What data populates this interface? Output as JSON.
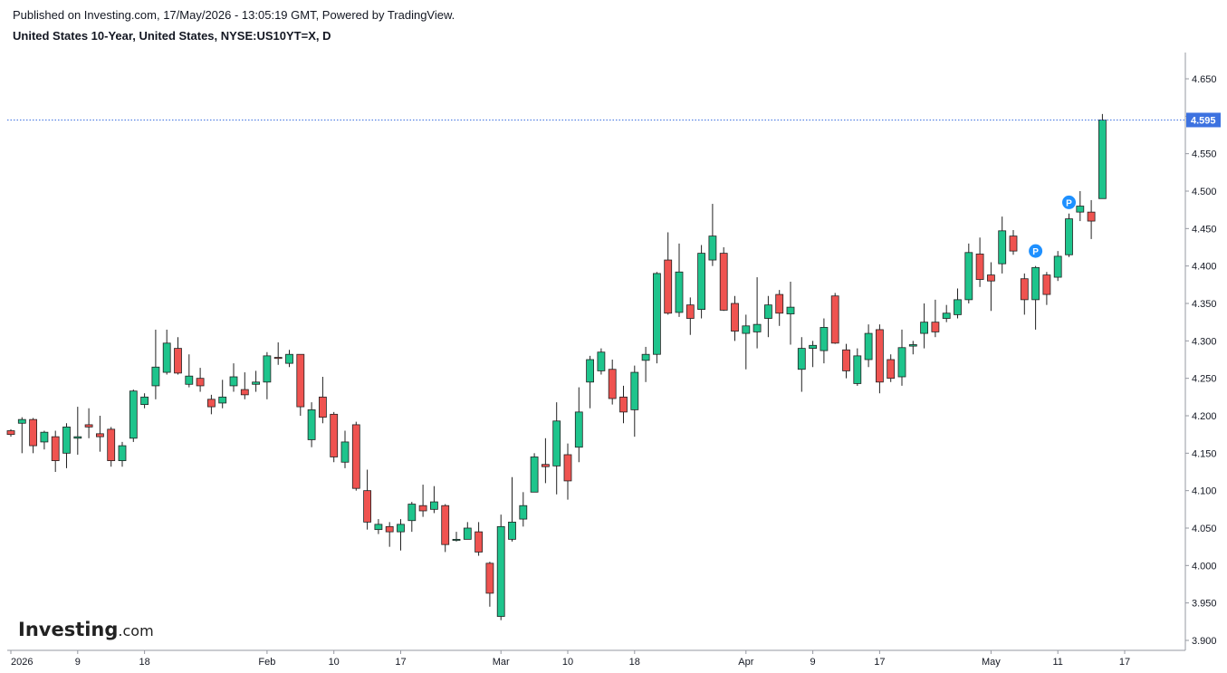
{
  "header": {
    "published": "Published on Investing.com, 17/May/2026 - 13:05:19 GMT, Powered by TradingView.",
    "symbol": "United States 10-Year, United States, NYSE:US10YT=X, D"
  },
  "logo": {
    "main": "Investing",
    "suffix": ".com"
  },
  "colors": {
    "up": "#1ec48c",
    "down": "#ef5350",
    "last_price": "#3d72e0",
    "pivot": "#1e90ff"
  },
  "chart_data": {
    "type": "candlestick",
    "ylim": [
      3.895,
      4.68
    ],
    "y_ticks": [
      "3.900",
      "3.950",
      "4.000",
      "4.050",
      "4.100",
      "4.150",
      "4.200",
      "4.250",
      "4.300",
      "4.350",
      "4.400",
      "4.450",
      "4.500",
      "4.550",
      "4.600",
      "4.650"
    ],
    "x_ticks": [
      {
        "label": "2026",
        "index": 0
      },
      {
        "label": "9",
        "index": 6
      },
      {
        "label": "18",
        "index": 12
      },
      {
        "label": "Feb",
        "index": 23
      },
      {
        "label": "10",
        "index": 29
      },
      {
        "label": "17",
        "index": 35
      },
      {
        "label": "Mar",
        "index": 44
      },
      {
        "label": "10",
        "index": 50
      },
      {
        "label": "18",
        "index": 56
      },
      {
        "label": "Apr",
        "index": 66
      },
      {
        "label": "9",
        "index": 72
      },
      {
        "label": "17",
        "index": 78
      },
      {
        "label": "May",
        "index": 88
      },
      {
        "label": "11",
        "index": 94
      },
      {
        "label": "17",
        "index": 100
      }
    ],
    "last_price": "4.595",
    "pivot_markers": [
      {
        "index": 92,
        "y": 4.42,
        "label": "P"
      },
      {
        "index": 95,
        "y": 4.485,
        "label": "P"
      }
    ],
    "candles": [
      {
        "o": 4.18,
        "h": 4.182,
        "l": 4.172,
        "c": 4.175
      },
      {
        "o": 4.19,
        "h": 4.198,
        "l": 4.15,
        "c": 4.195
      },
      {
        "o": 4.195,
        "h": 4.197,
        "l": 4.15,
        "c": 4.16
      },
      {
        "o": 4.165,
        "h": 4.18,
        "l": 4.155,
        "c": 4.178
      },
      {
        "o": 4.172,
        "h": 4.18,
        "l": 4.125,
        "c": 4.14
      },
      {
        "o": 4.15,
        "h": 4.19,
        "l": 4.13,
        "c": 4.185
      },
      {
        "o": 4.17,
        "h": 4.212,
        "l": 4.148,
        "c": 4.172
      },
      {
        "o": 4.188,
        "h": 4.21,
        "l": 4.17,
        "c": 4.185
      },
      {
        "o": 4.176,
        "h": 4.2,
        "l": 4.152,
        "c": 4.172
      },
      {
        "o": 4.182,
        "h": 4.185,
        "l": 4.132,
        "c": 4.14
      },
      {
        "o": 4.14,
        "h": 4.165,
        "l": 4.132,
        "c": 4.16
      },
      {
        "o": 4.17,
        "h": 4.235,
        "l": 4.165,
        "c": 4.233
      },
      {
        "o": 4.215,
        "h": 4.23,
        "l": 4.21,
        "c": 4.225
      },
      {
        "o": 4.24,
        "h": 4.315,
        "l": 4.222,
        "c": 4.265
      },
      {
        "o": 4.258,
        "h": 4.315,
        "l": 4.255,
        "c": 4.297
      },
      {
        "o": 4.29,
        "h": 4.305,
        "l": 4.255,
        "c": 4.257
      },
      {
        "o": 4.242,
        "h": 4.282,
        "l": 4.238,
        "c": 4.253
      },
      {
        "o": 4.25,
        "h": 4.264,
        "l": 4.232,
        "c": 4.24
      },
      {
        "o": 4.222,
        "h": 4.228,
        "l": 4.202,
        "c": 4.212
      },
      {
        "o": 4.217,
        "h": 4.248,
        "l": 4.21,
        "c": 4.225
      },
      {
        "o": 4.24,
        "h": 4.27,
        "l": 4.232,
        "c": 4.252
      },
      {
        "o": 4.235,
        "h": 4.258,
        "l": 4.222,
        "c": 4.228
      },
      {
        "o": 4.242,
        "h": 4.26,
        "l": 4.232,
        "c": 4.245
      },
      {
        "o": 4.245,
        "h": 4.285,
        "l": 4.222,
        "c": 4.28
      },
      {
        "o": 4.278,
        "h": 4.298,
        "l": 4.268,
        "c": 4.277
      },
      {
        "o": 4.27,
        "h": 4.288,
        "l": 4.265,
        "c": 4.282
      },
      {
        "o": 4.282,
        "h": 4.282,
        "l": 4.2,
        "c": 4.212
      },
      {
        "o": 4.168,
        "h": 4.218,
        "l": 4.158,
        "c": 4.208
      },
      {
        "o": 4.225,
        "h": 4.252,
        "l": 4.19,
        "c": 4.198
      },
      {
        "o": 4.202,
        "h": 4.205,
        "l": 4.138,
        "c": 4.145
      },
      {
        "o": 4.138,
        "h": 4.18,
        "l": 4.13,
        "c": 4.165
      },
      {
        "o": 4.188,
        "h": 4.192,
        "l": 4.1,
        "c": 4.103
      },
      {
        "o": 4.1,
        "h": 4.128,
        "l": 4.048,
        "c": 4.058
      },
      {
        "o": 4.048,
        "h": 4.062,
        "l": 4.042,
        "c": 4.055
      },
      {
        "o": 4.052,
        "h": 4.058,
        "l": 4.025,
        "c": 4.045
      },
      {
        "o": 4.045,
        "h": 4.062,
        "l": 4.02,
        "c": 4.055
      },
      {
        "o": 4.06,
        "h": 4.085,
        "l": 4.045,
        "c": 4.082
      },
      {
        "o": 4.08,
        "h": 4.108,
        "l": 4.065,
        "c": 4.073
      },
      {
        "o": 4.075,
        "h": 4.106,
        "l": 4.07,
        "c": 4.085
      },
      {
        "o": 4.08,
        "h": 4.082,
        "l": 4.018,
        "c": 4.028
      },
      {
        "o": 4.035,
        "h": 4.045,
        "l": 4.032,
        "c": 4.035
      },
      {
        "o": 4.035,
        "h": 4.058,
        "l": 4.035,
        "c": 4.05
      },
      {
        "o": 4.045,
        "h": 4.058,
        "l": 4.013,
        "c": 4.018
      },
      {
        "o": 4.003,
        "h": 4.005,
        "l": 3.945,
        "c": 3.963
      },
      {
        "o": 3.932,
        "h": 4.068,
        "l": 3.927,
        "c": 4.052
      },
      {
        "o": 4.035,
        "h": 4.118,
        "l": 4.032,
        "c": 4.058
      },
      {
        "o": 4.062,
        "h": 4.098,
        "l": 4.052,
        "c": 4.08
      },
      {
        "o": 4.098,
        "h": 4.15,
        "l": 4.098,
        "c": 4.145
      },
      {
        "o": 4.135,
        "h": 4.17,
        "l": 4.11,
        "c": 4.132
      },
      {
        "o": 4.133,
        "h": 4.218,
        "l": 4.095,
        "c": 4.193
      },
      {
        "o": 4.148,
        "h": 4.163,
        "l": 4.088,
        "c": 4.113
      },
      {
        "o": 4.158,
        "h": 4.238,
        "l": 4.138,
        "c": 4.205
      },
      {
        "o": 4.245,
        "h": 4.28,
        "l": 4.21,
        "c": 4.275
      },
      {
        "o": 4.26,
        "h": 4.29,
        "l": 4.255,
        "c": 4.285
      },
      {
        "o": 4.262,
        "h": 4.275,
        "l": 4.215,
        "c": 4.223
      },
      {
        "o": 4.225,
        "h": 4.24,
        "l": 4.19,
        "c": 4.205
      },
      {
        "o": 4.208,
        "h": 4.267,
        "l": 4.172,
        "c": 4.258
      },
      {
        "o": 4.274,
        "h": 4.292,
        "l": 4.245,
        "c": 4.282
      },
      {
        "o": 4.282,
        "h": 4.392,
        "l": 4.27,
        "c": 4.39
      },
      {
        "o": 4.408,
        "h": 4.445,
        "l": 4.335,
        "c": 4.337
      },
      {
        "o": 4.338,
        "h": 4.43,
        "l": 4.332,
        "c": 4.392
      },
      {
        "o": 4.348,
        "h": 4.358,
        "l": 4.308,
        "c": 4.33
      },
      {
        "o": 4.342,
        "h": 4.428,
        "l": 4.33,
        "c": 4.417
      },
      {
        "o": 4.408,
        "h": 4.483,
        "l": 4.4,
        "c": 4.44
      },
      {
        "o": 4.417,
        "h": 4.425,
        "l": 4.34,
        "c": 4.341
      },
      {
        "o": 4.35,
        "h": 4.36,
        "l": 4.3,
        "c": 4.313
      },
      {
        "o": 4.31,
        "h": 4.335,
        "l": 4.262,
        "c": 4.32
      },
      {
        "o": 4.312,
        "h": 4.385,
        "l": 4.29,
        "c": 4.322
      },
      {
        "o": 4.33,
        "h": 4.36,
        "l": 4.305,
        "c": 4.348
      },
      {
        "o": 4.362,
        "h": 4.368,
        "l": 4.32,
        "c": 4.337
      },
      {
        "o": 4.336,
        "h": 4.379,
        "l": 4.295,
        "c": 4.345
      },
      {
        "o": 4.262,
        "h": 4.305,
        "l": 4.232,
        "c": 4.29
      },
      {
        "o": 4.29,
        "h": 4.3,
        "l": 4.265,
        "c": 4.294
      },
      {
        "o": 4.287,
        "h": 4.33,
        "l": 4.27,
        "c": 4.318
      },
      {
        "o": 4.36,
        "h": 4.364,
        "l": 4.296,
        "c": 4.297
      },
      {
        "o": 4.288,
        "h": 4.296,
        "l": 4.25,
        "c": 4.26
      },
      {
        "o": 4.243,
        "h": 4.29,
        "l": 4.24,
        "c": 4.28
      },
      {
        "o": 4.275,
        "h": 4.322,
        "l": 4.265,
        "c": 4.31
      },
      {
        "o": 4.315,
        "h": 4.322,
        "l": 4.23,
        "c": 4.245
      },
      {
        "o": 4.275,
        "h": 4.282,
        "l": 4.245,
        "c": 4.25
      },
      {
        "o": 4.252,
        "h": 4.315,
        "l": 4.24,
        "c": 4.291
      },
      {
        "o": 4.293,
        "h": 4.3,
        "l": 4.282,
        "c": 4.295
      },
      {
        "o": 4.31,
        "h": 4.35,
        "l": 4.29,
        "c": 4.325
      },
      {
        "o": 4.325,
        "h": 4.355,
        "l": 4.305,
        "c": 4.312
      },
      {
        "o": 4.33,
        "h": 4.348,
        "l": 4.325,
        "c": 4.337
      },
      {
        "o": 4.335,
        "h": 4.37,
        "l": 4.33,
        "c": 4.355
      },
      {
        "o": 4.355,
        "h": 4.43,
        "l": 4.35,
        "c": 4.418
      },
      {
        "o": 4.416,
        "h": 4.438,
        "l": 4.372,
        "c": 4.382
      },
      {
        "o": 4.388,
        "h": 4.405,
        "l": 4.34,
        "c": 4.38
      },
      {
        "o": 4.403,
        "h": 4.466,
        "l": 4.39,
        "c": 4.447
      },
      {
        "o": 4.44,
        "h": 4.448,
        "l": 4.415,
        "c": 4.42
      },
      {
        "o": 4.383,
        "h": 4.39,
        "l": 4.335,
        "c": 4.355
      },
      {
        "o": 4.355,
        "h": 4.4,
        "l": 4.315,
        "c": 4.398
      },
      {
        "o": 4.388,
        "h": 4.392,
        "l": 4.348,
        "c": 4.362
      },
      {
        "o": 4.385,
        "h": 4.42,
        "l": 4.38,
        "c": 4.413
      },
      {
        "o": 4.415,
        "h": 4.47,
        "l": 4.412,
        "c": 4.463
      },
      {
        "o": 4.472,
        "h": 4.5,
        "l": 4.46,
        "c": 4.48
      },
      {
        "o": 4.472,
        "h": 4.488,
        "l": 4.436,
        "c": 4.46
      },
      {
        "o": 4.49,
        "h": 4.603,
        "l": 4.49,
        "c": 4.595
      }
    ]
  }
}
